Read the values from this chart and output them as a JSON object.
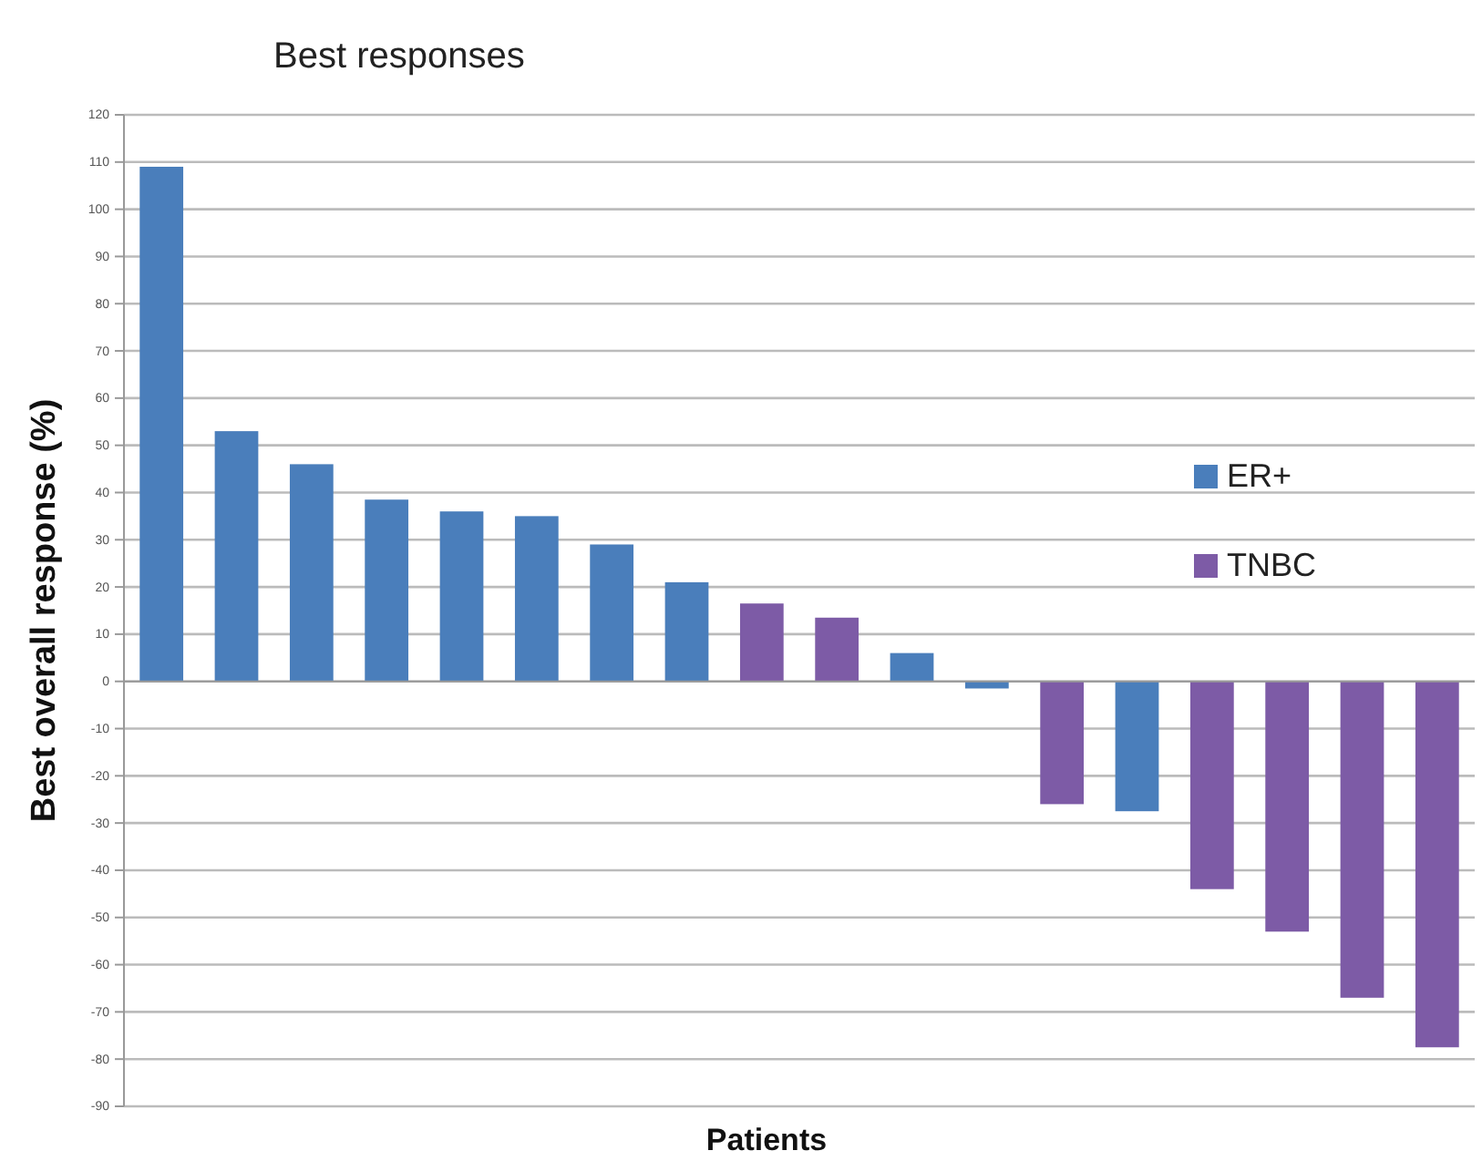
{
  "chart_data": {
    "type": "bar",
    "title": "Best responses",
    "xlabel": "Patients",
    "ylabel": "Best overall response (%)",
    "categories": [
      null,
      null,
      null,
      null,
      null,
      null,
      null,
      null,
      null,
      null,
      null,
      null,
      null,
      null,
      null,
      null,
      null,
      null
    ],
    "series": [
      {
        "name": "ER+",
        "color": "#4a7ebb",
        "values": [
          109,
          53,
          46,
          38.5,
          36,
          35,
          29,
          21,
          null,
          null,
          6,
          -1.5,
          null,
          -27.5,
          null,
          null,
          null,
          null
        ]
      },
      {
        "name": "TNBC",
        "color": "#7d5ba6",
        "values": [
          null,
          null,
          null,
          null,
          null,
          null,
          null,
          null,
          16.5,
          13.5,
          null,
          null,
          -26,
          null,
          -44,
          -53,
          -67,
          -77.5
        ]
      }
    ],
    "ylim": [
      -90,
      120
    ],
    "yticks": [
      -90,
      -80,
      -70,
      -60,
      -50,
      -40,
      -30,
      -20,
      -10,
      0,
      10,
      20,
      30,
      40,
      50,
      60,
      70,
      80,
      90,
      100,
      110,
      120
    ],
    "grid": "y",
    "legend": "right"
  }
}
